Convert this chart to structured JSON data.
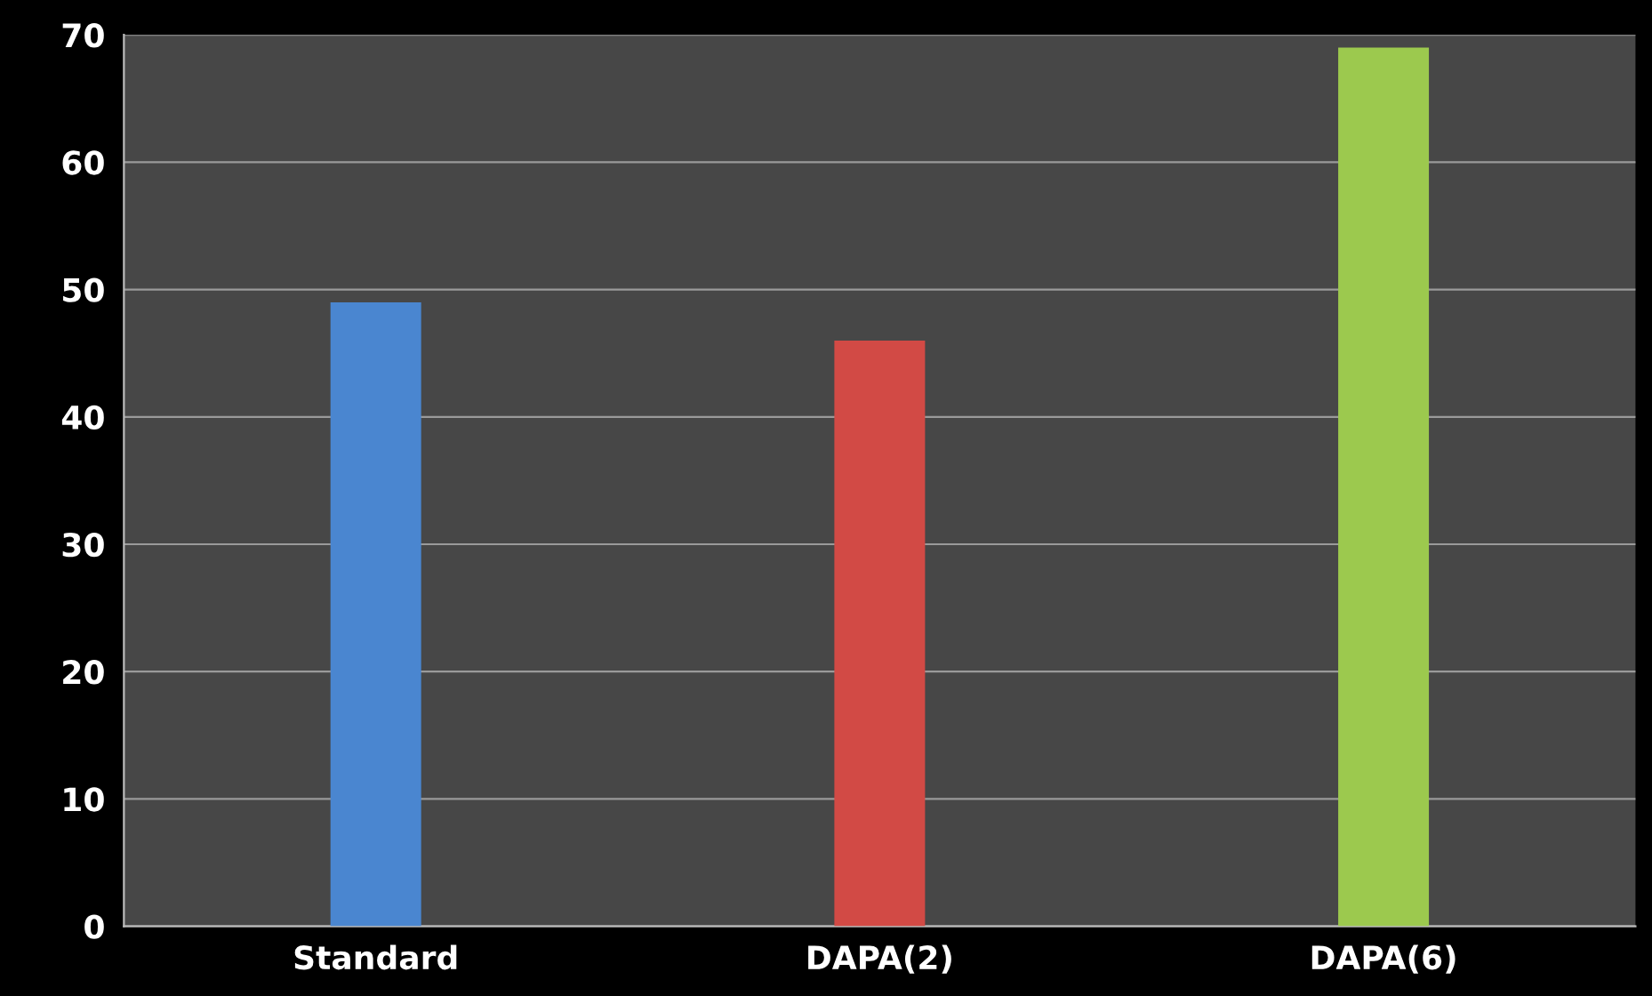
{
  "chart_data": {
    "type": "bar",
    "categories": [
      "Standard",
      "DAPA(2)",
      "DAPA(6)"
    ],
    "values": [
      49,
      46,
      69
    ],
    "colors": [
      "#4a86d0",
      "#d24a45",
      "#9cc94e"
    ],
    "ylim": [
      0,
      70
    ],
    "yticks": [
      0,
      10,
      20,
      30,
      40,
      50,
      60,
      70
    ],
    "grid": "y"
  }
}
